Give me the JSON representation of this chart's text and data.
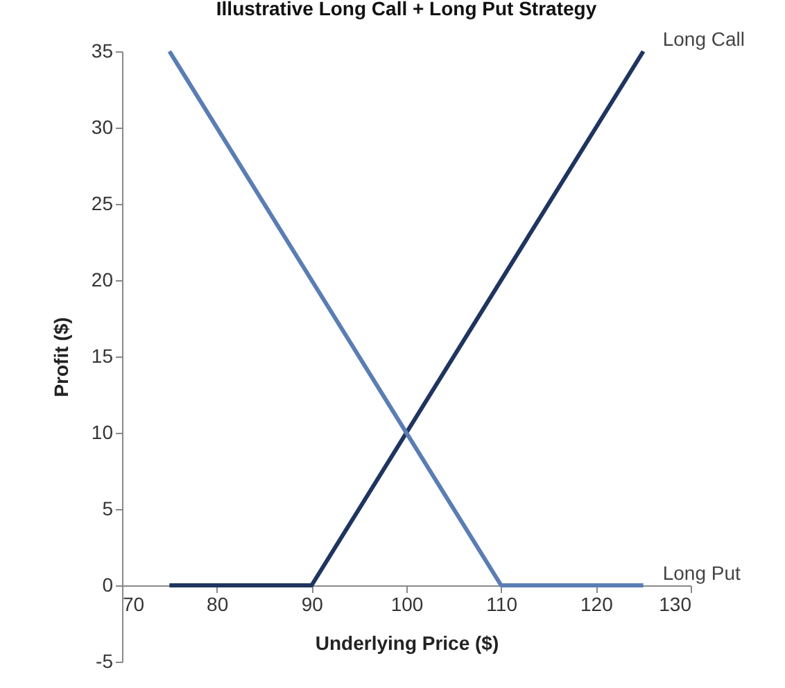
{
  "chart_data": {
    "type": "line",
    "title": "Illustrative Long Call + Long Put Strategy",
    "xlabel": "Underlying Price ($)",
    "ylabel": "Profit ($)",
    "xlim": [
      70,
      130
    ],
    "xticks": [
      70,
      80,
      90,
      100,
      110,
      120,
      130
    ],
    "ylim": [
      -5,
      35
    ],
    "yticks": [
      -5,
      0,
      5,
      10,
      15,
      20,
      25,
      30,
      35
    ],
    "grid": false,
    "legend": false,
    "marker": "none",
    "line_style": "solid",
    "series": [
      {
        "name": "Long Call",
        "color": "#1f3460",
        "x": [
          75,
          90,
          125
        ],
        "values": [
          0,
          0,
          35
        ]
      },
      {
        "name": "Long Put",
        "color": "#5a7db4",
        "x": [
          75,
          110,
          125
        ],
        "values": [
          35,
          0,
          0
        ]
      }
    ]
  }
}
